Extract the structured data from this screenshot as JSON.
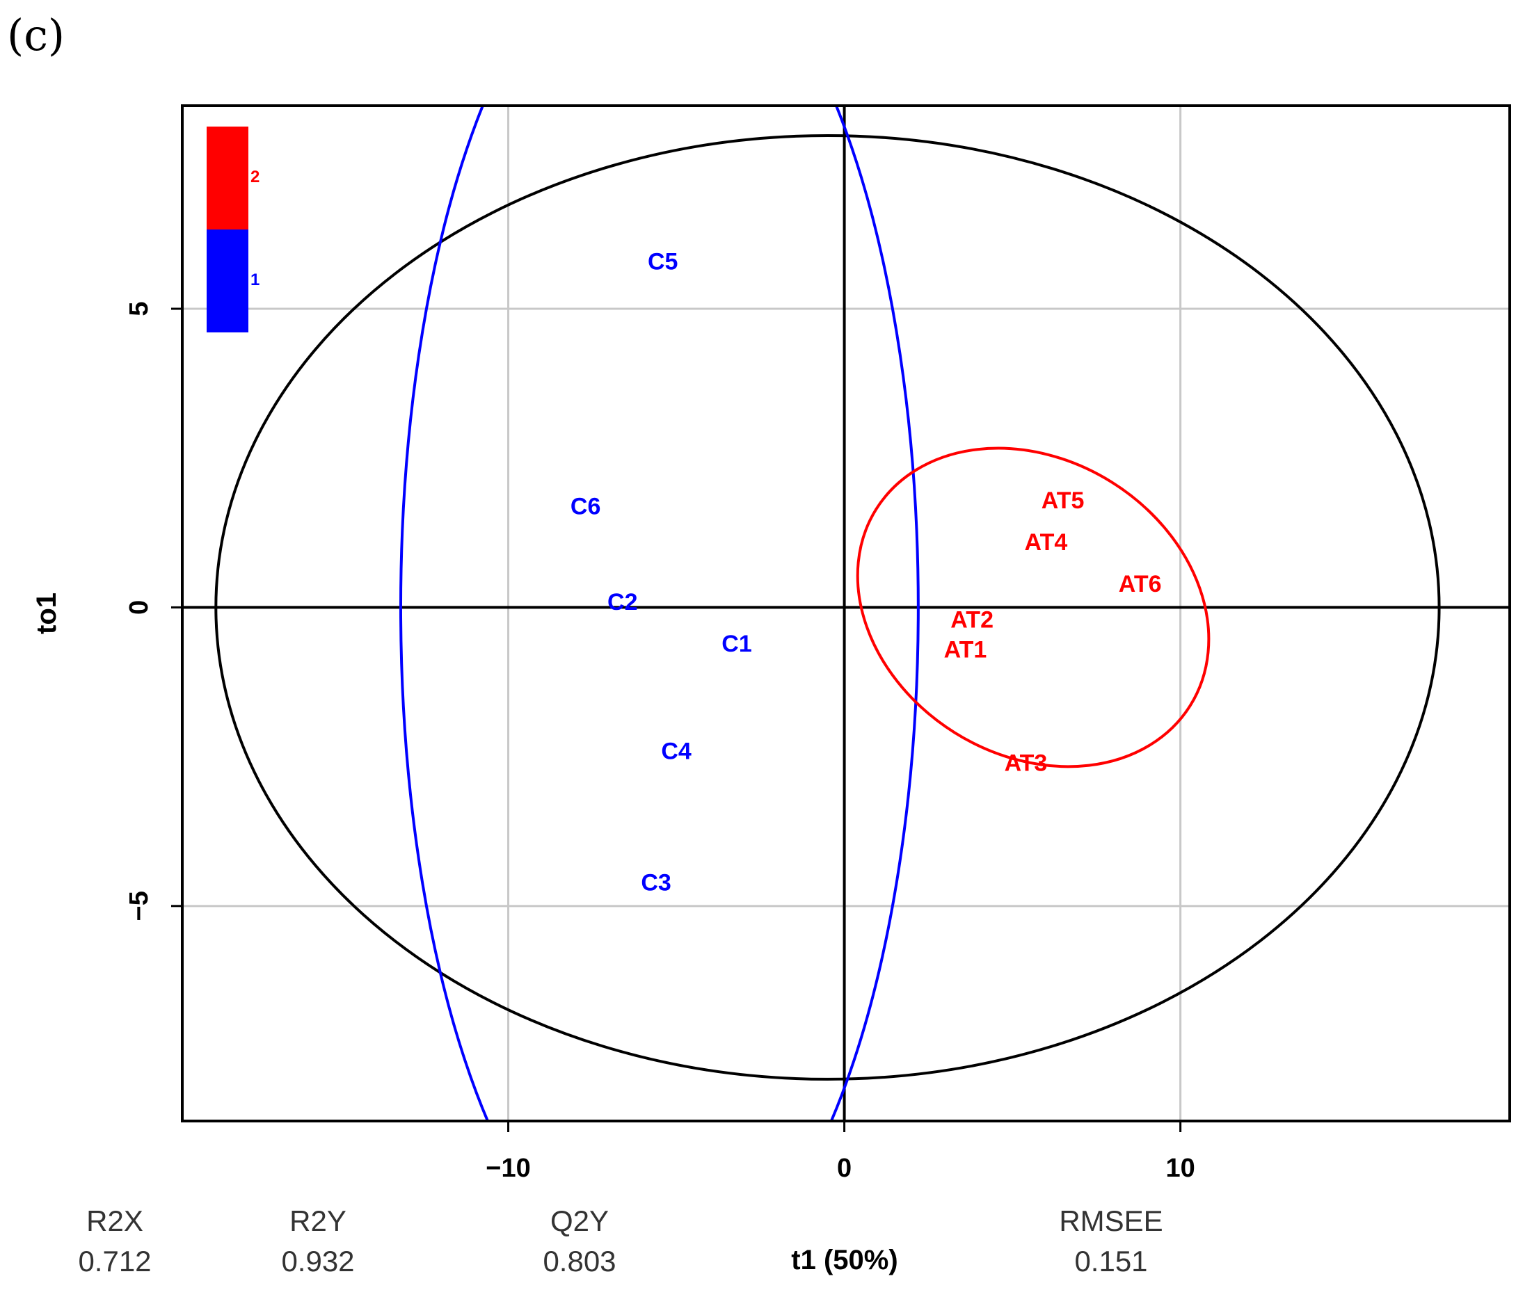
{
  "panel_label": "(c)",
  "colors": {
    "group1": "#0000ff",
    "group2": "#ff0000",
    "axis": "#000000",
    "grid": "#c8c8c8"
  },
  "chart_data": {
    "type": "scatter",
    "xlabel": "t1 (50%)",
    "ylabel": "to1",
    "xlim": [
      -19.7,
      19.8
    ],
    "ylim": [
      -8.6,
      8.4
    ],
    "xticks": [
      -10,
      0,
      10
    ],
    "xtick_labels": [
      "−10",
      "0",
      "10"
    ],
    "yticks": [
      -5,
      0,
      5
    ],
    "ytick_labels": [
      "−5",
      "0",
      "5"
    ],
    "grid": true,
    "legend": {
      "position": "top-left",
      "items": [
        {
          "label": "2",
          "color": "#ff0000"
        },
        {
          "label": "1",
          "color": "#0000ff"
        }
      ]
    },
    "series": [
      {
        "name": "1",
        "color": "#0000ff",
        "points": [
          {
            "label": "C5",
            "x": -5.4,
            "y": 5.8
          },
          {
            "label": "C6",
            "x": -7.7,
            "y": 1.7
          },
          {
            "label": "C2",
            "x": -6.6,
            "y": 0.1
          },
          {
            "label": "C1",
            "x": -3.2,
            "y": -0.6
          },
          {
            "label": "C4",
            "x": -5.0,
            "y": -2.4
          },
          {
            "label": "C3",
            "x": -5.6,
            "y": -4.6
          }
        ],
        "ellipse": {
          "cx": -5.5,
          "cy": 0,
          "rx": 7.7,
          "ry": 11.5,
          "angle": 0
        }
      },
      {
        "name": "2",
        "color": "#ff0000",
        "points": [
          {
            "label": "AT5",
            "x": 6.5,
            "y": 1.8
          },
          {
            "label": "AT4",
            "x": 6.0,
            "y": 1.1
          },
          {
            "label": "AT6",
            "x": 8.8,
            "y": 0.4
          },
          {
            "label": "AT2",
            "x": 3.8,
            "y": -0.2
          },
          {
            "label": "AT1",
            "x": 3.6,
            "y": -0.7
          },
          {
            "label": "AT3",
            "x": 5.4,
            "y": -2.6
          }
        ],
        "ellipse": {
          "cx": 5.62,
          "cy": 0.0,
          "rx": 4.4,
          "ry": 3.1,
          "angle": 58
        }
      }
    ],
    "hotelling_ellipse": {
      "cx": -0.5,
      "cy": 0.0,
      "rx": 18.2,
      "ry": 7.9
    },
    "metrics": [
      {
        "name": "R2X",
        "value": "0.712"
      },
      {
        "name": "R2Y",
        "value": "0.932"
      },
      {
        "name": "Q2Y",
        "value": "0.803"
      },
      {
        "name": "RMSEE",
        "value": "0.151"
      }
    ]
  }
}
